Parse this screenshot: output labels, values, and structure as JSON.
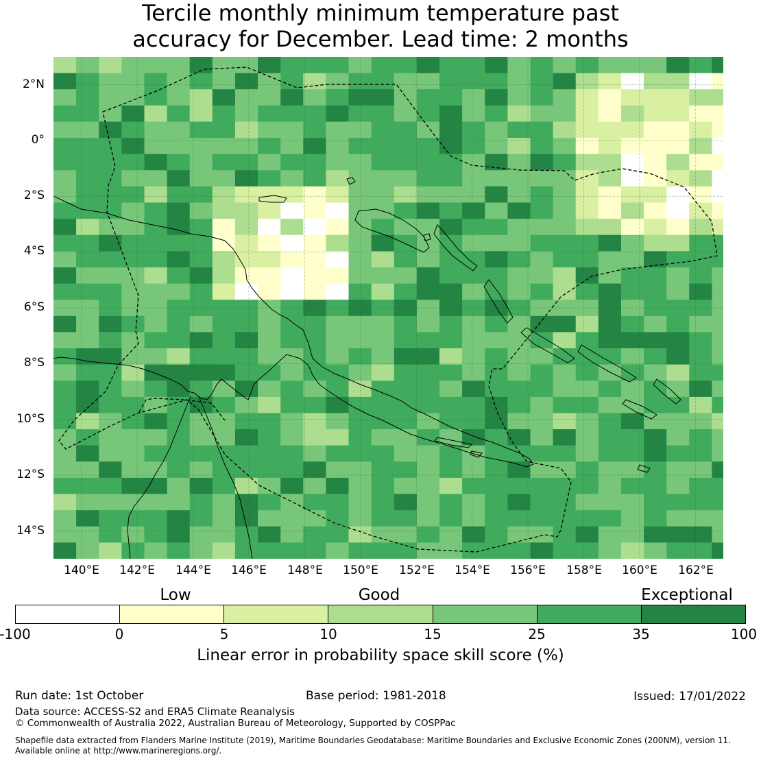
{
  "title": {
    "line1": "Tercile monthly minimum temperature past",
    "line2": "accuracy for December. Lead time: 2 months"
  },
  "map": {
    "lat_labels": [
      "2°N",
      "0°",
      "2°S",
      "4°S",
      "6°S",
      "8°S",
      "10°S",
      "12°S",
      "14°S"
    ],
    "lon_labels": [
      "140°E",
      "142°E",
      "144°E",
      "146°E",
      "148°E",
      "150°E",
      "152°E",
      "154°E",
      "156°E",
      "158°E",
      "160°E",
      "162°E"
    ],
    "extent": {
      "lon_min": 139,
      "lon_max": 163,
      "lat_min": -15,
      "lat_max": 3
    }
  },
  "legend": {
    "categories": [
      "Low",
      "Good",
      "Exceptional"
    ],
    "ticks": [
      "-100",
      "0",
      "5",
      "10",
      "15",
      "25",
      "35",
      "100"
    ],
    "colors": [
      "#ffffff",
      "#ffffcc",
      "#d9f0a3",
      "#addd8e",
      "#78c679",
      "#41ab5d",
      "#238443"
    ],
    "title": "Linear error in probability space skill score (%)"
  },
  "footer": {
    "run_date": "Run date: 1st October",
    "base_period": "Base period: 1981-2018",
    "issued": "Issued: 17/01/2022",
    "data_source": "Data source: ACCESS-S2 and ERA5 Climate Reanalysis",
    "copyright": "© Commonwealth of Australia 2022, Australian Bureau of Meteorology, Supported by COSPPac",
    "shapefile_line1": "Shapefile data extracted from Flanders Marine Institute (2019), Maritime Boundaries Geodatabase: Maritime Boundaries and Exclusive Economic Zones (200NM), version 11.",
    "shapefile_line2": "Available online at http://www.marineregions.org/."
  }
}
